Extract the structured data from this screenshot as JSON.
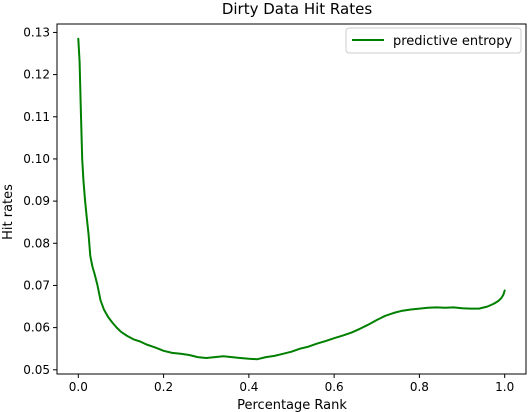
{
  "chart_data": {
    "type": "line",
    "title": "Dirty Data Hit Rates",
    "xlabel": "Percentage Rank",
    "ylabel": "Hit rates",
    "xlim": [
      -0.05,
      1.05
    ],
    "ylim": [
      0.049,
      0.132
    ],
    "xticks": [
      {
        "value": 0.0,
        "label": "0.0"
      },
      {
        "value": 0.2,
        "label": "0.2"
      },
      {
        "value": 0.4,
        "label": "0.4"
      },
      {
        "value": 0.6,
        "label": "0.6"
      },
      {
        "value": 0.8,
        "label": "0.8"
      },
      {
        "value": 1.0,
        "label": "1.0"
      }
    ],
    "yticks": [
      {
        "value": 0.05,
        "label": "0.05"
      },
      {
        "value": 0.06,
        "label": "0.06"
      },
      {
        "value": 0.07,
        "label": "0.07"
      },
      {
        "value": 0.08,
        "label": "0.08"
      },
      {
        "value": 0.09,
        "label": "0.09"
      },
      {
        "value": 0.1,
        "label": "0.10"
      },
      {
        "value": 0.11,
        "label": "0.11"
      },
      {
        "value": 0.12,
        "label": "0.12"
      },
      {
        "value": 0.13,
        "label": "0.13"
      }
    ],
    "grid": false,
    "legend_position": "top-right",
    "series": [
      {
        "name": "predictive entropy",
        "color": "#008000",
        "x": [
          0.0,
          0.003,
          0.006,
          0.009,
          0.012,
          0.016,
          0.02,
          0.024,
          0.028,
          0.033,
          0.038,
          0.045,
          0.052,
          0.06,
          0.07,
          0.08,
          0.09,
          0.1,
          0.115,
          0.13,
          0.145,
          0.16,
          0.18,
          0.2,
          0.22,
          0.24,
          0.26,
          0.28,
          0.3,
          0.32,
          0.34,
          0.36,
          0.38,
          0.4,
          0.42,
          0.44,
          0.46,
          0.48,
          0.5,
          0.52,
          0.54,
          0.56,
          0.58,
          0.6,
          0.62,
          0.64,
          0.66,
          0.68,
          0.7,
          0.72,
          0.74,
          0.76,
          0.78,
          0.8,
          0.82,
          0.84,
          0.86,
          0.88,
          0.9,
          0.92,
          0.94,
          0.96,
          0.975,
          0.985,
          0.992,
          0.997,
          1.0
        ],
        "y": [
          0.1285,
          0.123,
          0.111,
          0.1,
          0.095,
          0.09,
          0.086,
          0.082,
          0.077,
          0.0745,
          0.0728,
          0.07,
          0.0665,
          0.0643,
          0.0625,
          0.0612,
          0.06,
          0.059,
          0.058,
          0.0572,
          0.0567,
          0.056,
          0.0553,
          0.0545,
          0.054,
          0.0538,
          0.0535,
          0.053,
          0.0528,
          0.053,
          0.0532,
          0.053,
          0.0528,
          0.0526,
          0.0525,
          0.053,
          0.0533,
          0.0538,
          0.0543,
          0.055,
          0.0555,
          0.0562,
          0.0568,
          0.0575,
          0.0581,
          0.0588,
          0.0597,
          0.0607,
          0.0618,
          0.0628,
          0.0635,
          0.064,
          0.0643,
          0.0645,
          0.0647,
          0.0648,
          0.0647,
          0.0648,
          0.0646,
          0.0645,
          0.0645,
          0.065,
          0.0657,
          0.0663,
          0.067,
          0.0678,
          0.0688
        ]
      }
    ]
  }
}
